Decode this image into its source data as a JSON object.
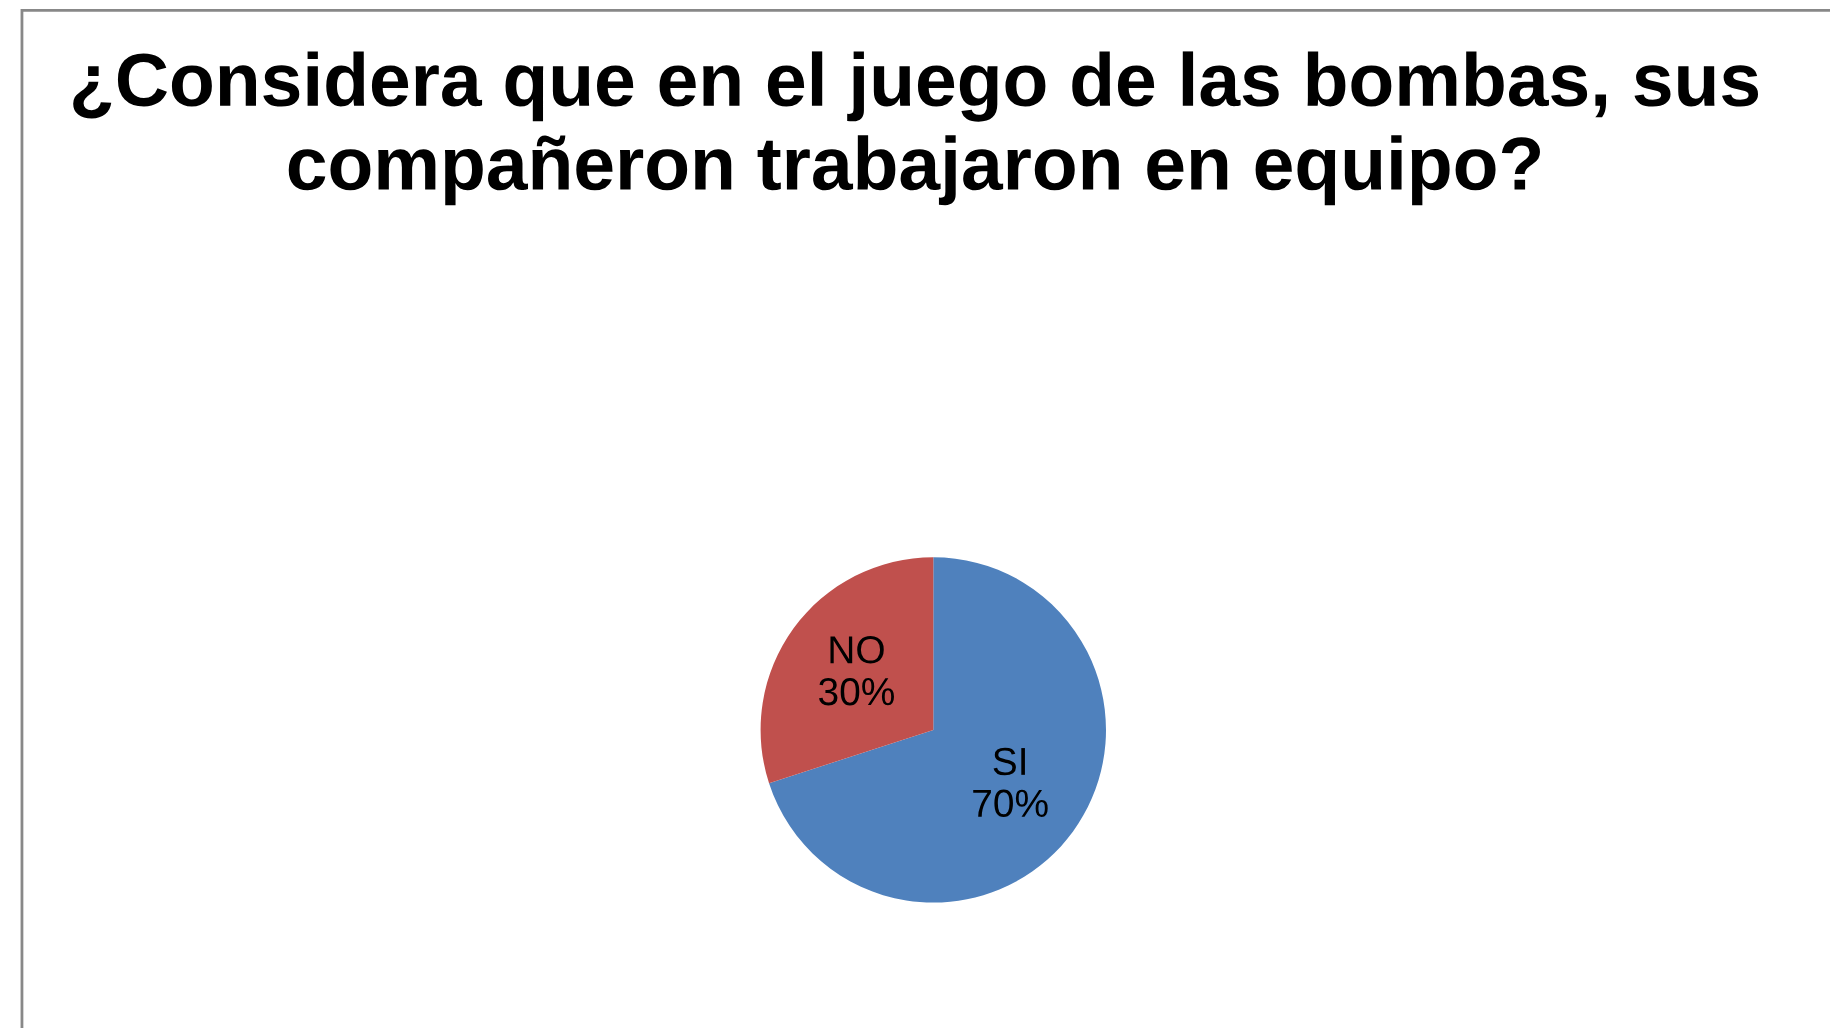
{
  "chart_data": {
    "type": "pie",
    "title": "¿Considera que en el juego de las bombas, sus compañeron trabajaron en equipo?",
    "categories": [
      "SI",
      "NO"
    ],
    "values": [
      70,
      30
    ],
    "colors": [
      "#4f81bd",
      "#c0504d"
    ],
    "value_labels": [
      "70%",
      "30%"
    ],
    "legend": false
  }
}
